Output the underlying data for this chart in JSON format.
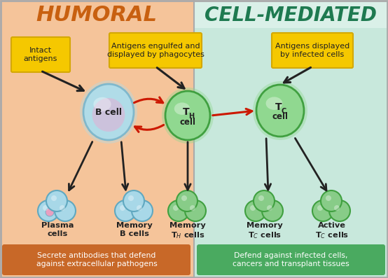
{
  "bg_left": "#f5c49a",
  "bg_right": "#c8e8dc",
  "header_left_bg": "#f5c49a",
  "header_right_bg": "#daf0e8",
  "title_left": "HUMORAL",
  "title_right": "CELL-MEDIATED",
  "title_left_color": "#c86010",
  "title_right_color": "#1e7a50",
  "label_box_fill": "#f5c800",
  "label_box_edge": "#d4a800",
  "label_box_left": "Intact\nantigens",
  "label_box_center": "Antigens engulfed and\ndisplayed by phagocytes",
  "label_box_right": "Antigens displayed\nby infected cells",
  "bottom_left_fill": "#c86828",
  "bottom_right_fill": "#4aaa60",
  "bottom_text_left": "Secrete antibodies that defend\nagainst extracellular pathogens",
  "bottom_text_right": "Defend against infected cells,\ncancers and transplant tissues",
  "b_cell_outer": "#b0dce8",
  "b_cell_inner": "#d8b8d8",
  "b_cell_edge": "#80b8cc",
  "th_cell_outer": "#90d890",
  "th_cell_edge": "#40a040",
  "tc_cell_outer": "#90d890",
  "tc_cell_edge": "#40a040",
  "mem_b_color": "#a8d8e8",
  "mem_b_edge": "#60a8c0",
  "plasma_outer": "#a8d8e8",
  "plasma_edge": "#60a8c0",
  "plasma_nucleus": "#e8a0c0",
  "mem_th_color": "#88cc88",
  "mem_th_edge": "#40a040",
  "mem_tc_color": "#88cc88",
  "mem_tc_edge": "#40a040",
  "act_tc_color": "#88cc88",
  "act_tc_edge": "#40a040",
  "arrow_dark": "#222222",
  "arrow_red": "#cc1800",
  "text_dark": "#222222",
  "divider": "#aaaaaa",
  "outer_border": "#aaaaaa",
  "fig_w": 5.54,
  "fig_h": 3.97,
  "dpi": 100
}
